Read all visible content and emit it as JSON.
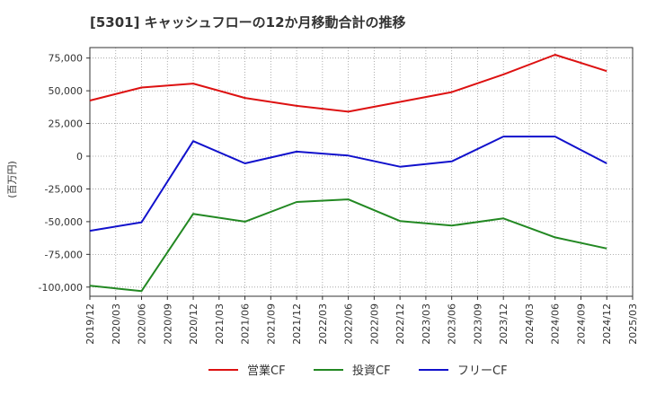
{
  "chart_data": {
    "type": "line",
    "title": "[5301]  キャッシュフローの12か月移動合計の推移",
    "ylabel": "(百万円)",
    "xlabel": "",
    "ylim": [
      -107000,
      83000
    ],
    "yticks": [
      75000,
      50000,
      25000,
      0,
      -25000,
      -50000,
      -75000,
      -100000
    ],
    "ytick_labels": [
      "75,000",
      "50,000",
      "25,000",
      "0",
      "-25,000",
      "-50,000",
      "-75,000",
      "-100,000"
    ],
    "categories": [
      "2019/12",
      "2020/03",
      "2020/06",
      "2020/09",
      "2020/12",
      "2021/03",
      "2021/06",
      "2021/09",
      "2021/12",
      "2022/03",
      "2022/06",
      "2022/09",
      "2022/12",
      "2023/03",
      "2023/06",
      "2023/09",
      "2023/12",
      "2024/03",
      "2024/06",
      "2024/09",
      "2024/12",
      "2025/03"
    ],
    "grid": true,
    "legend_position": "bottom",
    "series": [
      {
        "name": "営業CF",
        "color": "#dd1111",
        "points": [
          [
            "2019/12",
            42500
          ],
          [
            "2020/06",
            52500
          ],
          [
            "2020/12",
            55500
          ],
          [
            "2021/06",
            44500
          ],
          [
            "2021/12",
            38500
          ],
          [
            "2022/06",
            34000
          ],
          [
            "2022/12",
            41500
          ],
          [
            "2023/06",
            49000
          ],
          [
            "2023/12",
            62500
          ],
          [
            "2024/06",
            77500
          ],
          [
            "2024/12",
            65000
          ]
        ]
      },
      {
        "name": "投資CF",
        "color": "#228822",
        "points": [
          [
            "2019/12",
            -99000
          ],
          [
            "2020/06",
            -103000
          ],
          [
            "2020/12",
            -44000
          ],
          [
            "2021/06",
            -50000
          ],
          [
            "2021/12",
            -35000
          ],
          [
            "2022/06",
            -33000
          ],
          [
            "2022/12",
            -49500
          ],
          [
            "2023/06",
            -53000
          ],
          [
            "2023/12",
            -47500
          ],
          [
            "2024/06",
            -62000
          ],
          [
            "2024/12",
            -70500
          ]
        ]
      },
      {
        "name": "フリーCF",
        "color": "#1111cc",
        "points": [
          [
            "2019/12",
            -57000
          ],
          [
            "2020/06",
            -50500
          ],
          [
            "2020/12",
            11500
          ],
          [
            "2021/06",
            -5500
          ],
          [
            "2021/12",
            3500
          ],
          [
            "2022/06",
            500
          ],
          [
            "2022/12",
            -8000
          ],
          [
            "2023/06",
            -4000
          ],
          [
            "2023/12",
            15000
          ],
          [
            "2024/06",
            15000
          ],
          [
            "2024/12",
            -5500
          ]
        ]
      }
    ]
  }
}
